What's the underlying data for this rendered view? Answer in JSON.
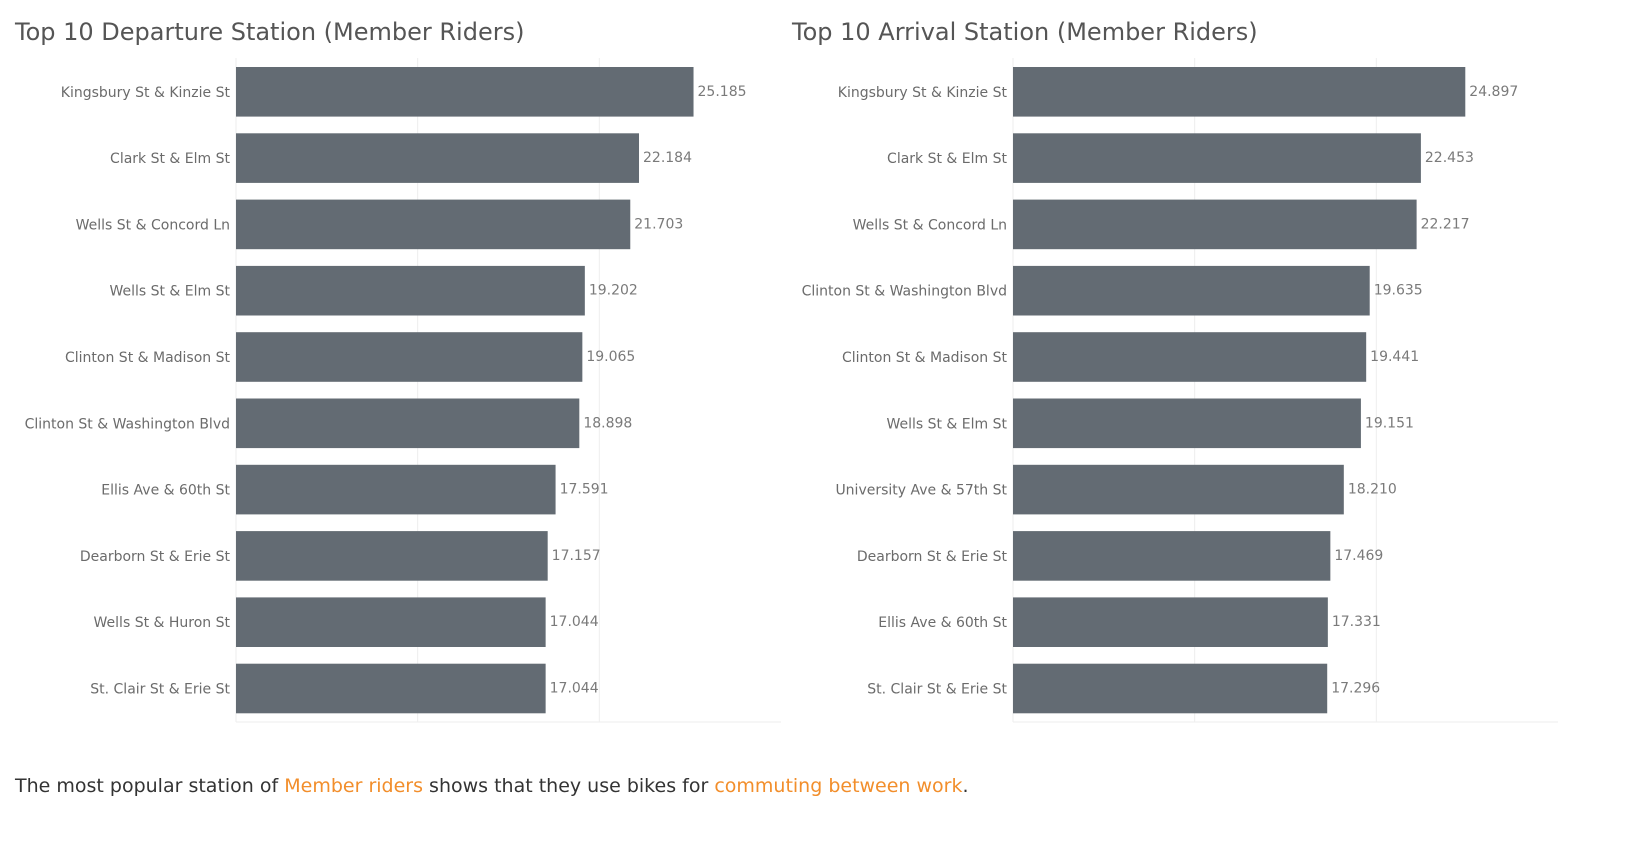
{
  "colors": {
    "bar": "#636b73",
    "grid": "#eeeeee",
    "highlight": "#f28e2b"
  },
  "chart_data": [
    {
      "type": "bar",
      "orientation": "horizontal",
      "title": "Top 10 Departure Station (Member Riders)",
      "categories": [
        "Kingsbury St & Kinzie St",
        "Clark St & Elm St",
        "Wells St & Concord Ln",
        "Wells St & Elm St",
        "Clinton St & Madison St",
        "Clinton St & Washington Blvd",
        "Ellis Ave & 60th St",
        "Dearborn St & Erie St",
        "Wells St & Huron St",
        "St. Clair St & Erie St"
      ],
      "values": [
        25.185,
        22.184,
        21.703,
        19.202,
        19.065,
        18.898,
        17.591,
        17.157,
        17.044,
        17.044
      ],
      "value_labels": [
        "25.185",
        "22.184",
        "21.703",
        "19.202",
        "19.065",
        "18.898",
        "17.591",
        "17.157",
        "17.044",
        "17.044"
      ],
      "xlim": [
        0,
        30
      ],
      "grid": true,
      "xlabel": "",
      "ylabel": ""
    },
    {
      "type": "bar",
      "orientation": "horizontal",
      "title": "Top 10 Arrival Station (Member Riders)",
      "categories": [
        "Kingsbury St & Kinzie St",
        "Clark St & Elm St",
        "Wells St & Concord Ln",
        "Clinton St & Washington Blvd",
        "Clinton St & Madison St",
        "Wells St & Elm St",
        "University Ave & 57th St",
        "Dearborn St & Erie St",
        "Ellis Ave & 60th St",
        "St. Clair St & Erie St"
      ],
      "values": [
        24.897,
        22.453,
        22.217,
        19.635,
        19.441,
        19.151,
        18.21,
        17.469,
        17.331,
        17.296
      ],
      "value_labels": [
        "24.897",
        "22.453",
        "22.217",
        "19.635",
        "19.441",
        "19.151",
        "18.210",
        "17.469",
        "17.331",
        "17.296"
      ],
      "xlim": [
        0,
        30
      ],
      "grid": true,
      "xlabel": "",
      "ylabel": ""
    }
  ],
  "footer": {
    "part1": "The most popular station of ",
    "highlight1": "Member riders",
    "part2": " shows that they use bikes for ",
    "highlight2": "commuting between work",
    "part3": "."
  }
}
